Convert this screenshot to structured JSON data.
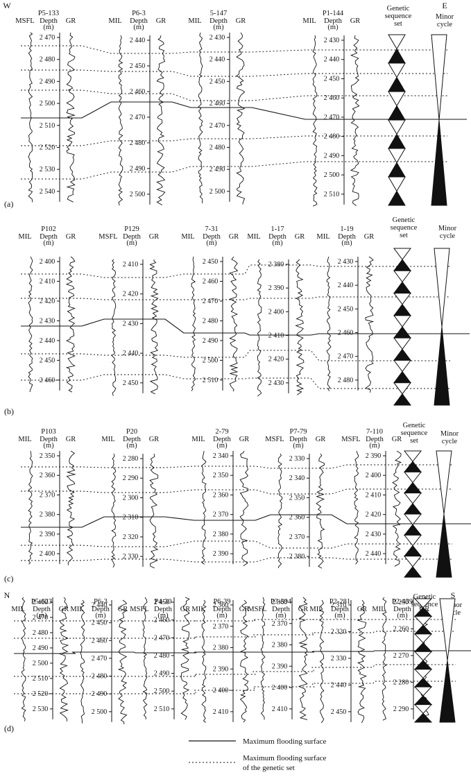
{
  "figure": {
    "panels": [
      {
        "label": "(a)",
        "left_letter": "W",
        "right_letter": "E",
        "genetic_label": [
          "Genetic",
          "sequence",
          "set"
        ],
        "minor_label": [
          "Minor",
          "cycle"
        ],
        "wells": [
          {
            "name": "P5-133",
            "left_curve": "MSFL",
            "depths": [
              "2 470",
              "2 480",
              "2 490",
              "2 500",
              "2 510",
              "2 520",
              "2 530",
              "2 540"
            ]
          },
          {
            "name": "P6-3",
            "left_curve": "MIL",
            "depths": [
              "2 440",
              "2 450",
              "2 460",
              "2 470",
              "2 480",
              "2 490",
              "2 500"
            ]
          },
          {
            "name": "5-147",
            "left_curve": "MIL",
            "depths": [
              "2 430",
              "2 440",
              "2 450",
              "2 460",
              "2 470",
              "2 480",
              "2 490",
              "2 500"
            ]
          },
          {
            "name": "P1-144",
            "left_curve": "MIL",
            "depths": [
              "2 430",
              "2 440",
              "2 450",
              "2 460",
              "2 470",
              "2 480",
              "2 490",
              "2 500",
              "2 510"
            ]
          }
        ]
      },
      {
        "label": "(b)",
        "left_letter": "",
        "right_letter": "",
        "genetic_label": [
          "Genetic",
          "sequence",
          "set"
        ],
        "minor_label": [
          "Minor",
          "cycle"
        ],
        "wells": [
          {
            "name": "P102",
            "left_curve": "MIL",
            "depths": [
              "2 400",
              "2 410",
              "2 420",
              "2 430",
              "2 440",
              "2 450",
              "2 460"
            ]
          },
          {
            "name": "P129",
            "left_curve": "MSFL",
            "depths": [
              "2 410",
              "2 420",
              "2 430",
              "2 440",
              "2 450"
            ]
          },
          {
            "name": "7-31",
            "left_curve": "MIL",
            "depths": [
              "2 450",
              "2 460",
              "2 470",
              "2 480",
              "2 490",
              "2 500",
              "2 510"
            ]
          },
          {
            "name": "1-17",
            "left_curve": "MIL",
            "depths": [
              "2 380",
              "2 390",
              "2 400",
              "2 410",
              "2 420",
              "2 430"
            ]
          },
          {
            "name": "1-19",
            "left_curve": "MIL",
            "depths": [
              "2 430",
              "2 440",
              "2 450",
              "2 460",
              "2 470",
              "2 480"
            ]
          }
        ]
      },
      {
        "label": "(c)",
        "left_letter": "",
        "right_letter": "",
        "genetic_label": [
          "Genetic",
          "sequence",
          "set"
        ],
        "minor_label": [
          "Minor",
          "cycle"
        ],
        "wells": [
          {
            "name": "P103",
            "left_curve": "MIL",
            "depths": [
              "2 350",
              "2 360",
              "2 370",
              "2 380",
              "2 390",
              "2 400"
            ]
          },
          {
            "name": "P20",
            "left_curve": "MIL",
            "depths": [
              "2 280",
              "2 290",
              "2 300",
              "2 310",
              "2 320",
              "2 330"
            ]
          },
          {
            "name": "2-79",
            "left_curve": "MIL",
            "depths": [
              "2 340",
              "2 350",
              "2 360",
              "2 370",
              "2 380",
              "2 390"
            ]
          },
          {
            "name": "P7-79",
            "left_curve": "MSFL",
            "depths": [
              "2 330",
              "2 340",
              "2 350",
              "2 360",
              "2 370",
              "2 380"
            ]
          },
          {
            "name": "7-110",
            "left_curve": "MSFL",
            "depths": [
              "2 390",
              "2 400",
              "2 410",
              "2 420",
              "2 430",
              "2 440"
            ]
          }
        ]
      },
      {
        "label": "(d)",
        "left_letter": "N",
        "right_letter": "S",
        "genetic_label": [
          "Genetic",
          "sequence",
          "set"
        ],
        "minor_label": [
          "Minor",
          "cycle"
        ],
        "wells": [
          {
            "name": "P5-623",
            "left_curve": "MIL",
            "depths": [
              "2 460",
              "2 470",
              "2 480",
              "2 490",
              "2 500",
              "2 510",
              "2 520",
              "2 530"
            ]
          },
          {
            "name": "P6-3",
            "left_curve": "MIL",
            "depths": [
              "2 440",
              "2 450",
              "2 460",
              "2 470",
              "2 480",
              "2 490",
              "2 500"
            ]
          },
          {
            "name": "P4-30",
            "left_curve": "MSFL",
            "depths": [
              "2 450",
              "2 460",
              "2 470",
              "2 480",
              "2 490",
              "2 500",
              "2 510"
            ]
          },
          {
            "name": "P6-39",
            "left_curve": "MIL",
            "depths": [
              "2 360",
              "2 370",
              "2 380",
              "2 390",
              "2 400",
              "2 410"
            ]
          },
          {
            "name": "P3-394",
            "left_curve": "MSFL",
            "depths": [
              "2 360",
              "2 370",
              "2 380",
              "2 390",
              "2 400",
              "2 410"
            ]
          },
          {
            "name": "P2-281",
            "left_curve": "MIL",
            "depths": [
              "2 310",
              "2 320",
              "2 330",
              "2 440",
              "2 450"
            ]
          },
          {
            "name": "P2-439",
            "left_curve": "MIL",
            "depths": [
              "2 250",
              "2 260",
              "2 270",
              "2 280",
              "2 290"
            ]
          }
        ]
      }
    ],
    "depth_label": "Depth",
    "depth_unit": "(m)",
    "gr_label": "GR",
    "legend": {
      "solid_label": "Maximum flooding surface",
      "dotted_label_1": "Maximum flooding surface",
      "dotted_label_2": "of the genetic set"
    },
    "colors": {
      "ink": "#111111",
      "background": "#ffffff"
    }
  }
}
